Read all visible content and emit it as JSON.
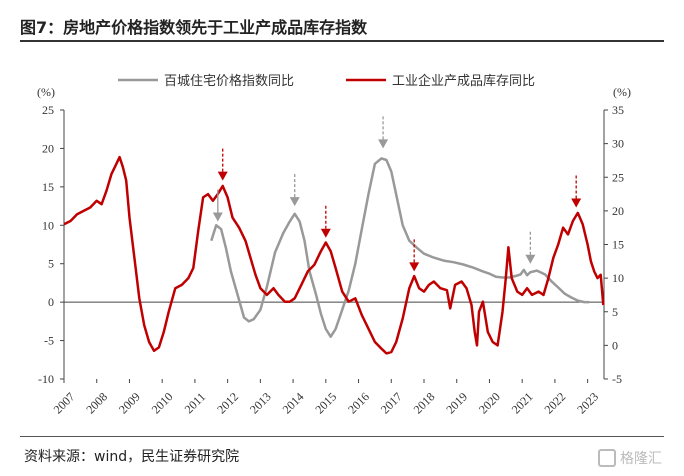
{
  "header": {
    "title": "图7：房地产价格指数领先于工业产成品库存指数"
  },
  "footer": {
    "source": "资料来源：wind，民生证券研究院",
    "watermark": "格隆汇"
  },
  "chart_data": {
    "type": "line",
    "legend_position": "top",
    "x_ticks": [
      "2007",
      "2008",
      "2009",
      "2010",
      "2011",
      "2012",
      "2013",
      "2014",
      "2015",
      "2016",
      "2017",
      "2018",
      "2019",
      "2020",
      "2021",
      "2022",
      "2023"
    ],
    "x_range": [
      2007.0,
      2023.5
    ],
    "y_left": {
      "unit": "(%)",
      "min": -10,
      "max": 25,
      "ticks": [
        -10,
        -5,
        0,
        5,
        10,
        15,
        20,
        25
      ]
    },
    "y_right": {
      "unit": "(%)",
      "min": -5,
      "max": 35,
      "ticks": [
        -5,
        0,
        5,
        10,
        15,
        20,
        25,
        30,
        35
      ]
    },
    "series": [
      {
        "name": "百城住宅价格指数同比",
        "axis": "left",
        "color": "#999999",
        "points": [
          [
            2011.5,
            8
          ],
          [
            2011.65,
            10
          ],
          [
            2011.8,
            9.5
          ],
          [
            2011.95,
            7
          ],
          [
            2012.1,
            4
          ],
          [
            2012.3,
            1
          ],
          [
            2012.5,
            -2
          ],
          [
            2012.65,
            -2.5
          ],
          [
            2012.8,
            -2.2
          ],
          [
            2013.0,
            -1
          ],
          [
            2013.2,
            2
          ],
          [
            2013.45,
            6.5
          ],
          [
            2013.7,
            9
          ],
          [
            2013.9,
            10.5
          ],
          [
            2014.05,
            11.5
          ],
          [
            2014.2,
            10.5
          ],
          [
            2014.35,
            8
          ],
          [
            2014.5,
            4
          ],
          [
            2014.7,
            1
          ],
          [
            2014.85,
            -1.5
          ],
          [
            2015.0,
            -3.5
          ],
          [
            2015.15,
            -4.5
          ],
          [
            2015.3,
            -3.5
          ],
          [
            2015.5,
            -1
          ],
          [
            2015.7,
            1.5
          ],
          [
            2015.9,
            5
          ],
          [
            2016.1,
            9.5
          ],
          [
            2016.3,
            14
          ],
          [
            2016.5,
            18
          ],
          [
            2016.7,
            18.7
          ],
          [
            2016.85,
            18.5
          ],
          [
            2017.0,
            17
          ],
          [
            2017.15,
            14
          ],
          [
            2017.35,
            10
          ],
          [
            2017.55,
            8
          ],
          [
            2017.8,
            7
          ],
          [
            2018.0,
            6.3
          ],
          [
            2018.3,
            5.8
          ],
          [
            2018.6,
            5.4
          ],
          [
            2018.9,
            5.2
          ],
          [
            2019.2,
            4.9
          ],
          [
            2019.5,
            4.5
          ],
          [
            2019.8,
            4.0
          ],
          [
            2020.0,
            3.7
          ],
          [
            2020.2,
            3.3
          ],
          [
            2020.4,
            3.2
          ],
          [
            2020.6,
            3.2
          ],
          [
            2020.8,
            3.4
          ],
          [
            2020.95,
            3.6
          ],
          [
            2021.05,
            4.2
          ],
          [
            2021.15,
            3.5
          ],
          [
            2021.25,
            3.9
          ],
          [
            2021.45,
            4.1
          ],
          [
            2021.7,
            3.6
          ],
          [
            2021.9,
            2.7
          ],
          [
            2022.1,
            1.9
          ],
          [
            2022.3,
            1.1
          ],
          [
            2022.5,
            0.6
          ],
          [
            2022.7,
            0.2
          ],
          [
            2022.9,
            0.0
          ],
          [
            2023.05,
            0.0
          ]
        ]
      },
      {
        "name": "工业企业产成品库存同比",
        "axis": "right",
        "color": "#c00000",
        "points": [
          [
            2007.0,
            18
          ],
          [
            2007.2,
            18.5
          ],
          [
            2007.4,
            19.5
          ],
          [
            2007.6,
            20
          ],
          [
            2007.8,
            20.5
          ],
          [
            2008.0,
            21.5
          ],
          [
            2008.15,
            21
          ],
          [
            2008.3,
            23
          ],
          [
            2008.45,
            25.5
          ],
          [
            2008.6,
            27
          ],
          [
            2008.7,
            28
          ],
          [
            2008.8,
            26.5
          ],
          [
            2008.9,
            24.5
          ],
          [
            2009.0,
            19
          ],
          [
            2009.15,
            13
          ],
          [
            2009.3,
            7
          ],
          [
            2009.45,
            3
          ],
          [
            2009.6,
            0.5
          ],
          [
            2009.75,
            -0.8
          ],
          [
            2009.9,
            -0.3
          ],
          [
            2010.05,
            2
          ],
          [
            2010.2,
            5
          ],
          [
            2010.4,
            8.5
          ],
          [
            2010.6,
            9
          ],
          [
            2010.8,
            10
          ],
          [
            2010.95,
            11.5
          ],
          [
            2011.1,
            17
          ],
          [
            2011.25,
            22
          ],
          [
            2011.4,
            22.5
          ],
          [
            2011.55,
            21.5
          ],
          [
            2011.7,
            22.5
          ],
          [
            2011.85,
            23.7
          ],
          [
            2012.0,
            22
          ],
          [
            2012.15,
            19
          ],
          [
            2012.35,
            17.5
          ],
          [
            2012.55,
            15.5
          ],
          [
            2012.7,
            13
          ],
          [
            2012.85,
            10.5
          ],
          [
            2013.0,
            8.5
          ],
          [
            2013.2,
            7.5
          ],
          [
            2013.4,
            8.5
          ],
          [
            2013.55,
            7.5
          ],
          [
            2013.75,
            6.5
          ],
          [
            2013.9,
            6.5
          ],
          [
            2014.05,
            7
          ],
          [
            2014.25,
            9
          ],
          [
            2014.45,
            11
          ],
          [
            2014.65,
            12
          ],
          [
            2014.85,
            14
          ],
          [
            2015.0,
            15.3
          ],
          [
            2015.15,
            14
          ],
          [
            2015.3,
            11.5
          ],
          [
            2015.5,
            8
          ],
          [
            2015.7,
            6.5
          ],
          [
            2015.9,
            7
          ],
          [
            2016.1,
            4.5
          ],
          [
            2016.3,
            2.5
          ],
          [
            2016.5,
            0.5
          ],
          [
            2016.7,
            -0.5
          ],
          [
            2016.85,
            -1.2
          ],
          [
            2017.0,
            -1
          ],
          [
            2017.15,
            0.5
          ],
          [
            2017.35,
            4
          ],
          [
            2017.55,
            8.5
          ],
          [
            2017.7,
            10.3
          ],
          [
            2017.85,
            8.5
          ],
          [
            2018.0,
            8
          ],
          [
            2018.15,
            9
          ],
          [
            2018.3,
            9.5
          ],
          [
            2018.5,
            8.5
          ],
          [
            2018.7,
            8.2
          ],
          [
            2018.8,
            5.5
          ],
          [
            2018.95,
            9
          ],
          [
            2019.15,
            9.5
          ],
          [
            2019.3,
            8.5
          ],
          [
            2019.45,
            6
          ],
          [
            2019.55,
            2
          ],
          [
            2019.62,
            0
          ],
          [
            2019.68,
            5
          ],
          [
            2019.8,
            6.5
          ],
          [
            2019.95,
            2
          ],
          [
            2020.1,
            0.5
          ],
          [
            2020.25,
            0
          ],
          [
            2020.4,
            5
          ],
          [
            2020.5,
            10
          ],
          [
            2020.58,
            14.6
          ],
          [
            2020.68,
            10
          ],
          [
            2020.85,
            8
          ],
          [
            2021.0,
            7.5
          ],
          [
            2021.15,
            8.5
          ],
          [
            2021.3,
            7.5
          ],
          [
            2021.5,
            8
          ],
          [
            2021.65,
            7.5
          ],
          [
            2021.8,
            10
          ],
          [
            2021.95,
            13
          ],
          [
            2022.1,
            15
          ],
          [
            2022.25,
            17.5
          ],
          [
            2022.4,
            16.5
          ],
          [
            2022.55,
            18.5
          ],
          [
            2022.7,
            19.7
          ],
          [
            2022.85,
            18
          ],
          [
            2023.0,
            15
          ],
          [
            2023.1,
            12.5
          ],
          [
            2023.2,
            11
          ],
          [
            2023.3,
            10
          ],
          [
            2023.4,
            10.5
          ],
          [
            2023.48,
            6
          ]
        ]
      }
    ],
    "arrows": [
      {
        "color": "#999999",
        "x": 2011.7,
        "y_axis": "left",
        "y": 10.5,
        "style": "solid"
      },
      {
        "color": "#999999",
        "x": 2014.05,
        "y_axis": "left",
        "y": 12.5,
        "style": "dashed"
      },
      {
        "color": "#999999",
        "x": 2016.75,
        "y_axis": "left",
        "y": 20.0,
        "style": "dashed"
      },
      {
        "color": "#999999",
        "x": 2021.25,
        "y_axis": "left",
        "y": 5.0,
        "style": "dashed"
      },
      {
        "color": "#c00000",
        "x": 2011.85,
        "y_axis": "right",
        "y": 24.5,
        "style": "dashed"
      },
      {
        "color": "#c00000",
        "x": 2015.0,
        "y_axis": "right",
        "y": 16.0,
        "style": "dashed"
      },
      {
        "color": "#c00000",
        "x": 2017.7,
        "y_axis": "right",
        "y": 11.0,
        "style": "dashed"
      },
      {
        "color": "#c00000",
        "x": 2022.65,
        "y_axis": "right",
        "y": 20.5,
        "style": "dashed"
      }
    ]
  }
}
